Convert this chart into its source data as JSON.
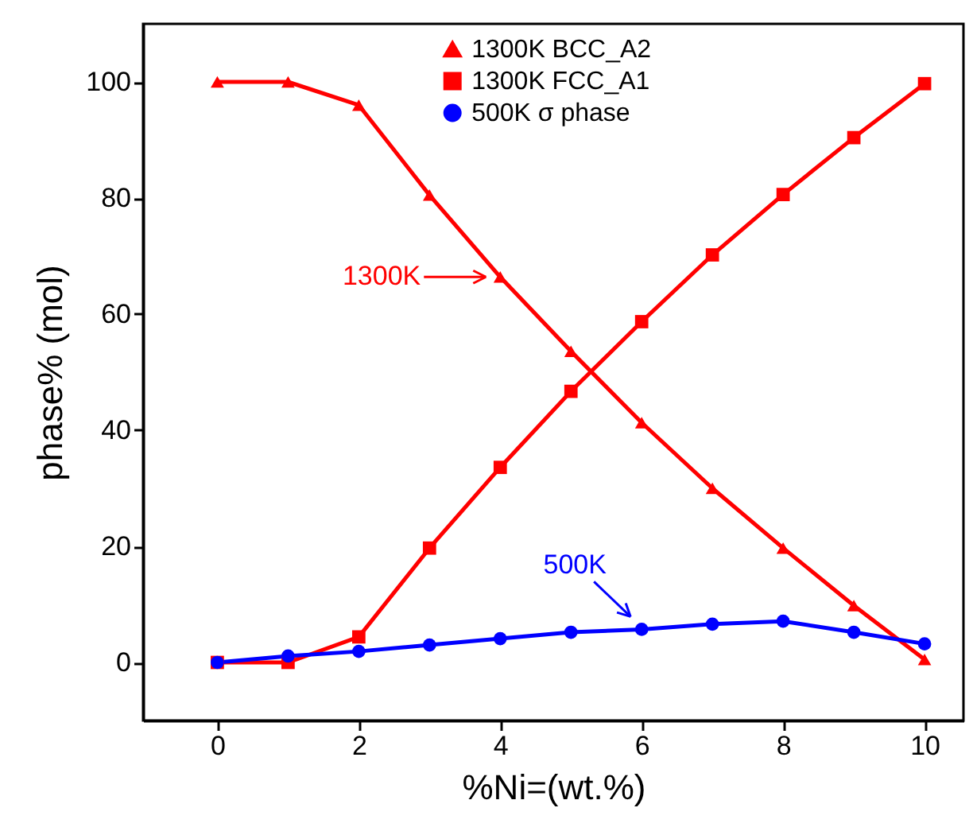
{
  "chart_data": {
    "type": "line",
    "xlabel": "%Ni=(wt.%)",
    "ylabel": "phase% (mol)",
    "x": [
      0,
      1,
      2,
      3,
      4,
      5,
      6,
      7,
      8,
      9,
      10
    ],
    "series": [
      {
        "name": "1300K BCC_A2",
        "color": "#ff0000",
        "marker": "triangle",
        "values": [
          100,
          100,
          96,
          80.5,
          66.4,
          53.6,
          41.3,
          30,
          19.7,
          9.8,
          0.5
        ]
      },
      {
        "name": "1300K FCC_A1",
        "color": "#ff0000",
        "marker": "square",
        "values": [
          0,
          0,
          4.4,
          19.7,
          33.6,
          46.7,
          58.7,
          70.2,
          80.6,
          90.4,
          99.7
        ]
      },
      {
        "name": "500K σ phase",
        "color": "#0000ff",
        "marker": "circle",
        "values": [
          0,
          1.1,
          1.9,
          3,
          4.1,
          5.2,
          5.7,
          6.6,
          7.1,
          5.2,
          3.2
        ]
      }
    ],
    "xlim": [
      -1.05,
      10.55
    ],
    "ylim": [
      -10,
      110
    ],
    "xticks": [
      0,
      2,
      4,
      6,
      8,
      10
    ],
    "yticks": [
      0,
      20,
      40,
      60,
      80,
      100
    ],
    "grid": false,
    "legend": "top right",
    "annotations": [
      {
        "text": "1300K",
        "x": 4,
        "y": 66.4
      },
      {
        "text": "500K",
        "x": 6,
        "y": 5.7
      }
    ]
  }
}
